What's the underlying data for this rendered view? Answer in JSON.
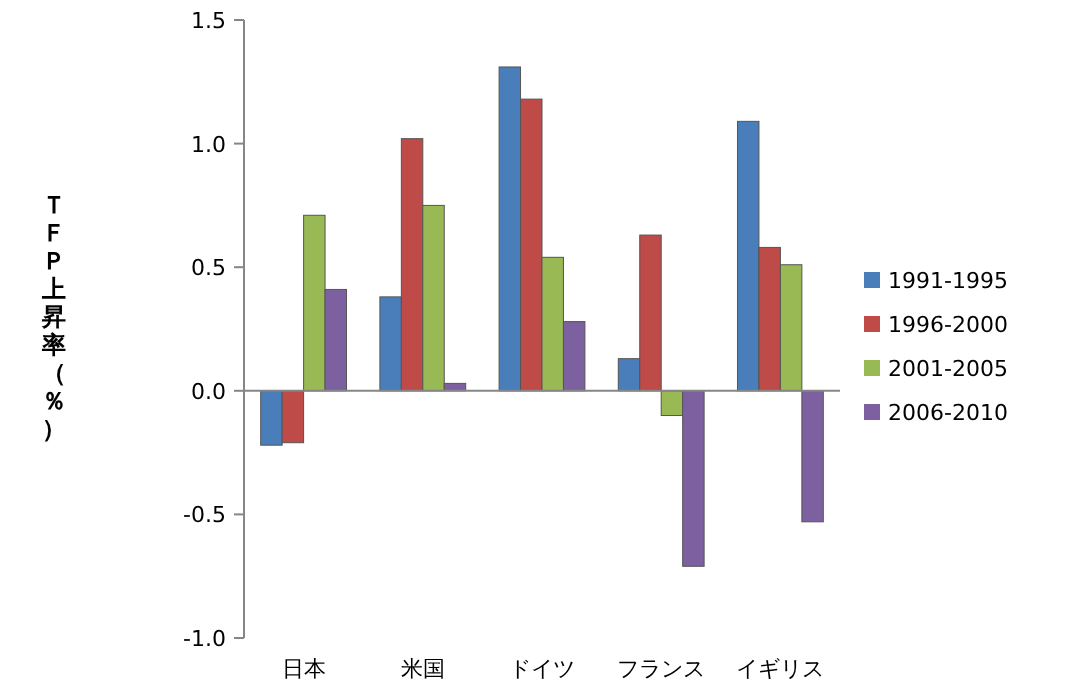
{
  "chart_data": {
    "type": "bar",
    "ylabel": "ＴＦＰ上昇率（％）",
    "categories": [
      "日本",
      "米国",
      "ドイツ",
      "フランス",
      "イギリス"
    ],
    "series": [
      {
        "name": "1991-1995",
        "color": "#4a7ebb",
        "values": [
          -0.22,
          0.38,
          1.31,
          0.13,
          1.09
        ]
      },
      {
        "name": "1996-2000",
        "color": "#be4b48",
        "values": [
          -0.21,
          1.02,
          1.18,
          0.63,
          0.58
        ]
      },
      {
        "name": "2001-2005",
        "color": "#98b954",
        "values": [
          0.71,
          0.75,
          0.54,
          -0.1,
          0.51
        ]
      },
      {
        "name": "2006-2010",
        "color": "#7d60a0",
        "values": [
          0.41,
          0.03,
          0.28,
          -0.71,
          -0.53
        ]
      }
    ],
    "ylim": [
      -1.0,
      1.5
    ],
    "yticks": [
      {
        "value": -1.0,
        "label": "-1.0"
      },
      {
        "value": -0.5,
        "label": "-0.5"
      },
      {
        "value": 0,
        "label": "0.0"
      },
      {
        "value": 0.5,
        "label": "0.5"
      },
      {
        "value": 1.0,
        "label": "1.0"
      },
      {
        "value": 1.5,
        "label": "1.5"
      }
    ],
    "legend": "right"
  }
}
